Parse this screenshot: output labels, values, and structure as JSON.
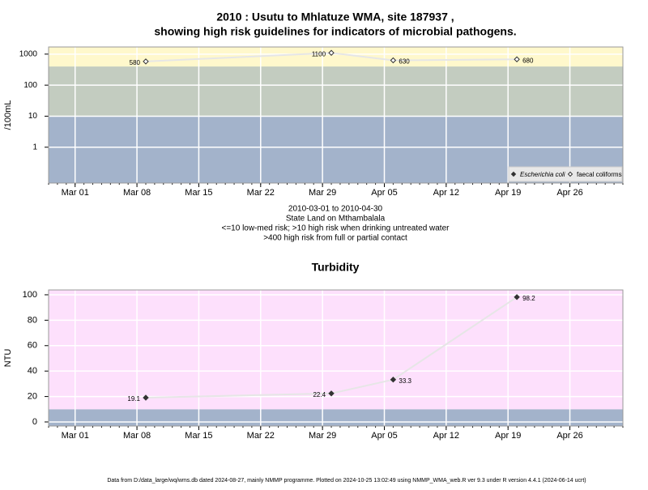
{
  "chart_data": [
    {
      "type": "line",
      "title": [
        "2010 : Usutu to Mhlatuze WMA, site 187937 ,",
        "showing high risk guidelines for indicators of microbial pathogens."
      ],
      "subtitle": [
        "2010-03-01 to 2010-04-30",
        "State Land on Mthambalala",
        "<=10 low-med risk; >10 high risk when drinking untreated water",
        ">400 high risk from full or partial contact"
      ],
      "y_label": "/100mL",
      "log_scale": true,
      "x": [
        "2010-03-09",
        "2010-03-30",
        "2010-04-06",
        "2010-04-20"
      ],
      "series": [
        {
          "name": "Escherichia coli",
          "color": "#333333",
          "marker": "filled",
          "values": [
            null,
            null,
            null,
            null
          ]
        },
        {
          "name": "faecal coliforms",
          "color": "#333333",
          "marker": "open",
          "values": [
            580,
            1100,
            630,
            680
          ]
        }
      ],
      "line_color": "#e6e6e6",
      "band_breaks": [
        10,
        400
      ],
      "band_colors": [
        "#a3b3cb",
        "#c3ccc0",
        "#fff8cc"
      ],
      "xlim": [
        "2010-02-26",
        "2010-05-02"
      ],
      "xticks": [
        {
          "value": "2010-03-01",
          "label": "Mar 01"
        },
        {
          "value": "2010-03-08",
          "label": "Mar 08"
        },
        {
          "value": "2010-03-15",
          "label": "Mar 15"
        },
        {
          "value": "2010-03-22",
          "label": "Mar 22"
        },
        {
          "value": "2010-03-29",
          "label": "Mar 29"
        },
        {
          "value": "2010-04-05",
          "label": "Apr 05"
        },
        {
          "value": "2010-04-12",
          "label": "Apr 12"
        },
        {
          "value": "2010-04-19",
          "label": "Apr 19"
        },
        {
          "value": "2010-04-26",
          "label": "Apr 26"
        }
      ],
      "ylim": [
        0.07,
        1700
      ],
      "yticks": [
        1,
        10,
        100,
        1000
      ],
      "grid": true,
      "legend": "bottom-right"
    },
    {
      "type": "line",
      "title": [
        "Turbidity"
      ],
      "y_label": "NTU",
      "log_scale": false,
      "x": [
        "2010-03-09",
        "2010-03-30",
        "2010-04-06",
        "2010-04-20"
      ],
      "series": [
        {
          "name": null,
          "color": "#333333",
          "marker": "filled",
          "values": [
            19.1,
            22.4,
            33.3,
            98.2
          ]
        }
      ],
      "line_color": "#e6e6e6",
      "band_breaks": [
        10
      ],
      "band_colors": [
        "#a3b3cb",
        "#fde0fc"
      ],
      "xlim": [
        "2010-02-26",
        "2010-05-02"
      ],
      "xticks": [
        {
          "value": "2010-03-01",
          "label": "Mar 01"
        },
        {
          "value": "2010-03-08",
          "label": "Mar 08"
        },
        {
          "value": "2010-03-15",
          "label": "Mar 15"
        },
        {
          "value": "2010-03-22",
          "label": "Mar 22"
        },
        {
          "value": "2010-03-29",
          "label": "Mar 29"
        },
        {
          "value": "2010-04-05",
          "label": "Apr 05"
        },
        {
          "value": "2010-04-12",
          "label": "Apr 12"
        },
        {
          "value": "2010-04-19",
          "label": "Apr 19"
        },
        {
          "value": "2010-04-26",
          "label": "Apr 26"
        }
      ],
      "ylim": [
        -3.2,
        103.8
      ],
      "yticks": [
        0,
        20,
        40,
        60,
        80,
        100
      ],
      "grid": true
    }
  ],
  "footer": "Data from D:/data_large/wq/wms.db dated 2024-08-27, mainly NMMP programme. Plotted on 2024-10-25 13:02:49 using NMMP_WMA_web.R ver 9.3 under R version 4.4.1 (2024-06-14 ucrt)"
}
